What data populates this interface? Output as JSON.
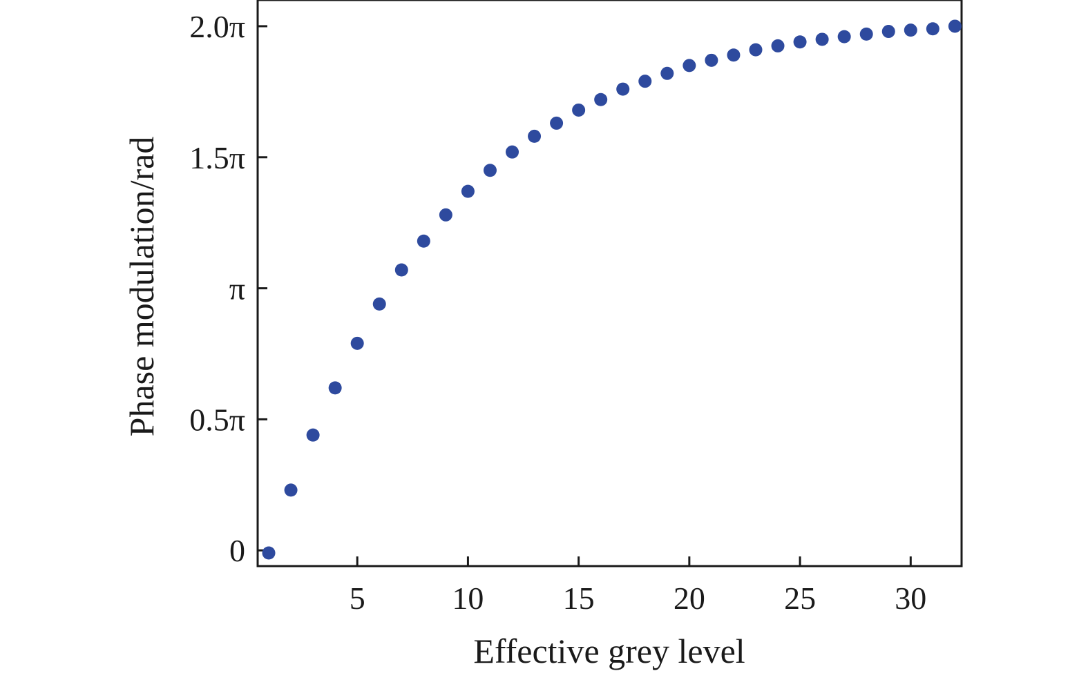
{
  "chart_data": {
    "type": "scatter",
    "title": "",
    "xlabel": "Effective grey level",
    "ylabel": "Phase modulation/rad",
    "xlim": [
      0.5,
      32.3
    ],
    "ylim": [
      -0.06,
      2.1
    ],
    "y_unit": "pi",
    "grid": false,
    "legend": "none",
    "marker_color": "#2E4A9E",
    "x_ticks": [
      {
        "value": 5,
        "label": "5"
      },
      {
        "value": 10,
        "label": "10"
      },
      {
        "value": 15,
        "label": "15"
      },
      {
        "value": 20,
        "label": "20"
      },
      {
        "value": 25,
        "label": "25"
      },
      {
        "value": 30,
        "label": "30"
      }
    ],
    "y_ticks": [
      {
        "value": 0,
        "label": "0"
      },
      {
        "value": 0.5,
        "label": "0.5π"
      },
      {
        "value": 1.0,
        "label": "π"
      },
      {
        "value": 1.5,
        "label": "1.5π"
      },
      {
        "value": 2.0,
        "label": "2.0π"
      }
    ],
    "series": [
      {
        "x": [
          1,
          2,
          3,
          4,
          5,
          6,
          7,
          8,
          9,
          10,
          11,
          12,
          13,
          14,
          15,
          16,
          17,
          18,
          19,
          20,
          21,
          22,
          23,
          24,
          25,
          26,
          27,
          28,
          29,
          30,
          31,
          32
        ],
        "y": [
          -0.01,
          0.23,
          0.44,
          0.62,
          0.79,
          0.94,
          1.07,
          1.18,
          1.28,
          1.37,
          1.45,
          1.52,
          1.58,
          1.63,
          1.68,
          1.72,
          1.76,
          1.79,
          1.82,
          1.85,
          1.87,
          1.89,
          1.91,
          1.925,
          1.94,
          1.95,
          1.96,
          1.97,
          1.98,
          1.985,
          1.99,
          2.0
        ]
      }
    ]
  }
}
